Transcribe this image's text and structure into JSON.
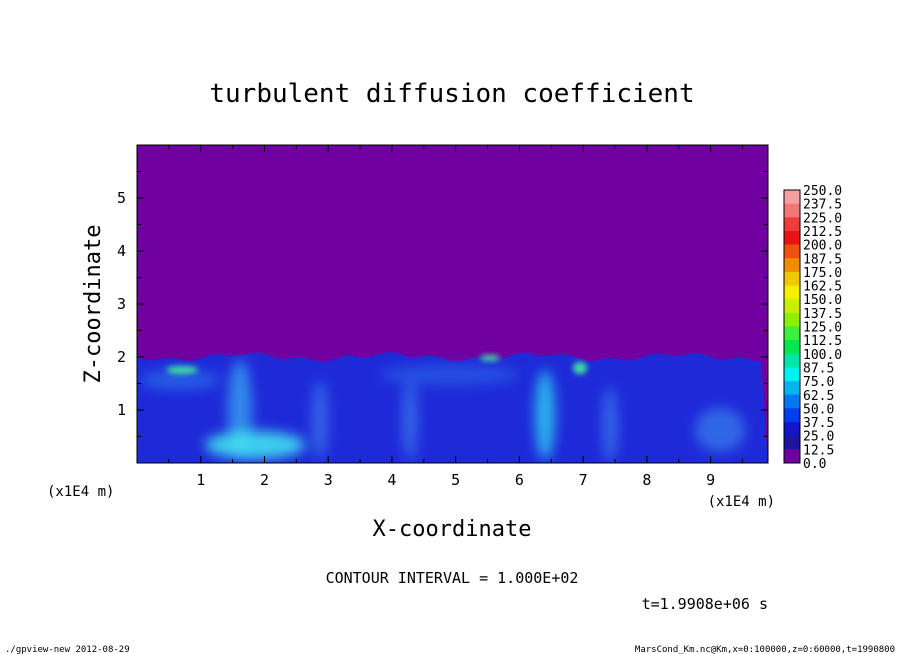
{
  "chart_data": {
    "type": "heatmap",
    "title": "turbulent diffusion coefficient",
    "xlabel": "X-coordinate",
    "ylabel": "Z-coordinate",
    "x_unit": "(x1E4 m)",
    "y_unit": "(x1E4 m)",
    "xlim": [
      0,
      9.9
    ],
    "ylim": [
      0,
      6.0
    ],
    "x_ticks": [
      1,
      2,
      3,
      4,
      5,
      6,
      7,
      8,
      9
    ],
    "y_ticks": [
      1,
      2,
      3,
      4,
      5
    ],
    "contour_interval": "CONTOUR INTERVAL = 1.000E+02",
    "time_label": "t=1.9908e+06 s",
    "colorbar": {
      "labels": [
        "250.0",
        "237.5",
        "225.0",
        "212.5",
        "200.0",
        "187.5",
        "175.0",
        "162.5",
        "150.0",
        "137.5",
        "125.0",
        "112.5",
        "100.0",
        "87.5",
        "75.0",
        "62.5",
        "50.0",
        "37.5",
        "25.0",
        "12.5",
        "0.0"
      ],
      "colors": [
        "#f4a0a0",
        "#f27878",
        "#ee3c3c",
        "#e81414",
        "#f05010",
        "#f08c00",
        "#f0c800",
        "#f0f000",
        "#c8f000",
        "#8cf000",
        "#3cf03c",
        "#00e650",
        "#00e6aa",
        "#00f0f0",
        "#00b4f0",
        "#0078f0",
        "#003cf0",
        "#1414c8",
        "#1e14a0",
        "#6e00a0"
      ]
    },
    "background_color": "#7000a0",
    "boundary_layer_top": 2.0
  },
  "footer": {
    "left": "./gpview-new   2012-08-29",
    "right": "MarsCond_Km.nc@Km,x=0:100000,z=0:60000,t=1990800"
  }
}
